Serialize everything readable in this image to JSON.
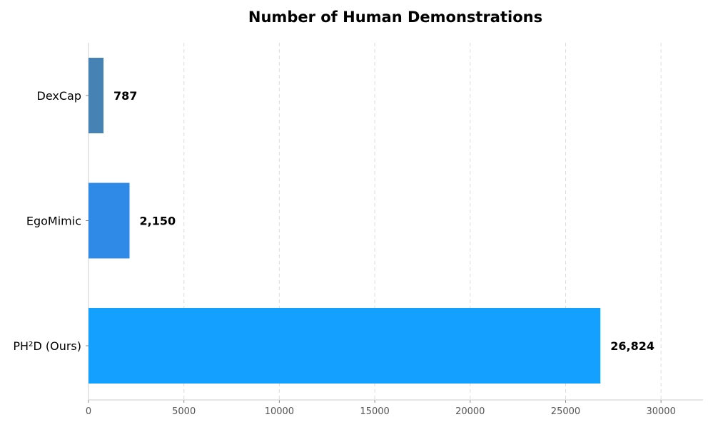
{
  "chart_data": {
    "type": "bar",
    "orientation": "horizontal",
    "title": "Number of Human Demonstrations",
    "xlabel": "",
    "ylabel": "",
    "categories": [
      "DexCap",
      "EgoMimic",
      "PH²D (Ours)"
    ],
    "values": [
      787,
      2150,
      26824
    ],
    "data_labels": [
      "787",
      "2,150",
      "26,824"
    ],
    "colors": [
      "#4682B4",
      "#2E8AE6",
      "#14A0FF"
    ],
    "xlim": [
      0,
      32200
    ],
    "x_ticks": [
      0,
      5000,
      10000,
      15000,
      20000,
      25000,
      30000
    ],
    "x_tick_labels": [
      "0",
      "5000",
      "10000",
      "15000",
      "20000",
      "25000",
      "30000"
    ],
    "grid": "vertical-dashed",
    "legend": "none"
  }
}
